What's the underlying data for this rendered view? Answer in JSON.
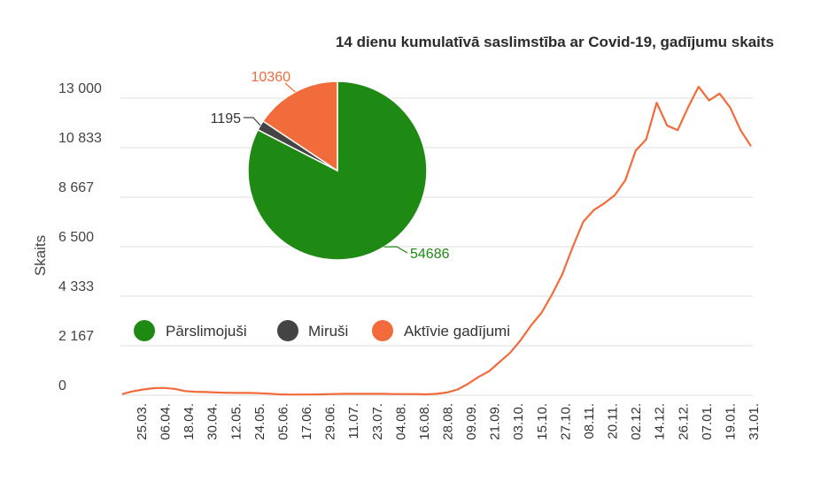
{
  "colors": {
    "recovered": "#1f8a13",
    "deaths": "#444444",
    "active": "#f26b3a",
    "line": "#f26b3a",
    "grid": "#dddddd"
  },
  "chart_data": [
    {
      "type": "line",
      "title": "14 dienu kumulatīvā saslimstība ar Covid-19, gadījumu skaits",
      "xlabel": "",
      "ylabel": "Skaits",
      "ylim": [
        0,
        13000
      ],
      "yticks": [
        0,
        2167,
        4333,
        6500,
        8667,
        10833,
        13000
      ],
      "ytick_labels": [
        "0",
        "2 167",
        "4 333",
        "6 500",
        "8 667",
        "10 833",
        "13 000"
      ],
      "grid": true,
      "x_tick_labels": [
        "25.03.",
        "06.04.",
        "18.04.",
        "30.04.",
        "12.05.",
        "24.05.",
        "05.06.",
        "17.06.",
        "29.06.",
        "11.07.",
        "23.07.",
        "04.08.",
        "16.08.",
        "28.08.",
        "09.09.",
        "21.09.",
        "03.10.",
        "15.10.",
        "27.10.",
        "08.11.",
        "20.11.",
        "02.12.",
        "14.12.",
        "26.12.",
        "07.01.",
        "19.01.",
        "31.01."
      ],
      "series": [
        {
          "values": [
            50,
            170,
            250,
            310,
            320,
            280,
            180,
            150,
            140,
            120,
            110,
            100,
            100,
            90,
            70,
            40,
            30,
            30,
            30,
            40,
            50,
            60,
            60,
            60,
            60,
            60,
            50,
            50,
            50,
            40,
            60,
            120,
            250,
            500,
            800,
            1050,
            1450,
            1850,
            2400,
            3050,
            3600,
            4400,
            5300,
            6500,
            7600,
            8100,
            8400,
            8750,
            9400,
            10700,
            11200,
            12800,
            11800,
            11600,
            12600,
            13500,
            12900,
            13200,
            12600,
            11600,
            10900
          ]
        }
      ]
    },
    {
      "type": "pie",
      "categories": [
        "Pārslimojuši",
        "Miruši",
        "Aktīvie gadījumi"
      ],
      "values": [
        54686,
        1195,
        10360
      ],
      "labels": [
        "54686",
        "1195",
        "10360"
      ],
      "legend_position": "left"
    }
  ]
}
